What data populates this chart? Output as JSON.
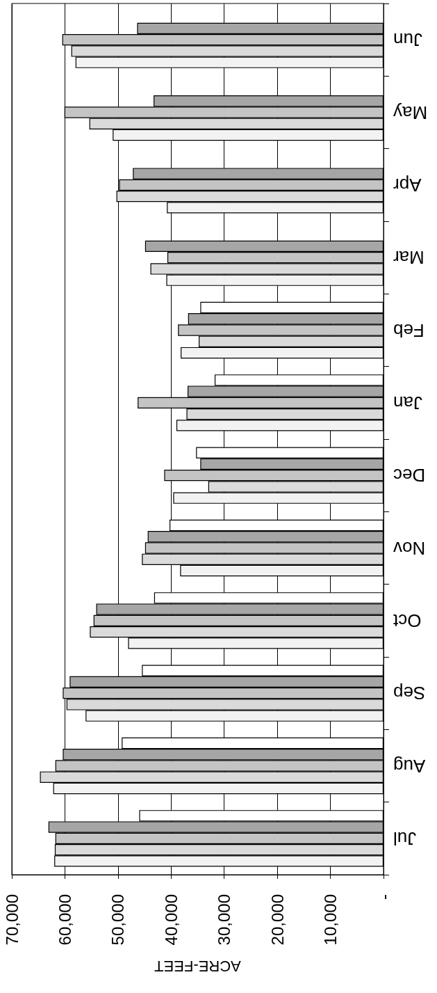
{
  "chart_data": {
    "type": "bar",
    "orientation": "horizontal",
    "xlabel": "ACRE-FEET",
    "categories": [
      "Jun",
      "May",
      "Apr",
      "Mar",
      "Feb",
      "Jan",
      "Dec",
      "Nov",
      "Oct",
      "Sep",
      "Aug",
      "Jul"
    ],
    "series": [
      {
        "color": "#ffffff",
        "values": [
          null,
          null,
          null,
          null,
          34500,
          31800,
          35300,
          40300,
          43200,
          45500,
          49300,
          46000
        ]
      },
      {
        "color": "#a6a6a6",
        "values": [
          46400,
          43300,
          47200,
          44900,
          36800,
          36900,
          34500,
          44400,
          54100,
          59100,
          60400,
          63100
        ]
      },
      {
        "color": "#c4c4c4",
        "values": [
          60500,
          60100,
          49800,
          40700,
          38700,
          46300,
          41300,
          44900,
          54600,
          60400,
          61800,
          61800
        ]
      },
      {
        "color": "#dadada",
        "values": [
          58800,
          55400,
          50300,
          43900,
          34800,
          37100,
          33000,
          45500,
          55300,
          59700,
          64700,
          61900
        ]
      },
      {
        "color": "#f2f2f2",
        "values": [
          58000,
          51000,
          40800,
          40900,
          38200,
          39000,
          39600,
          38300,
          48100,
          56100,
          62200,
          62000
        ]
      }
    ],
    "xlim": [
      70000,
      0
    ],
    "xticks": [
      {
        "value": 70000,
        "label": "70,000"
      },
      {
        "value": 60000,
        "label": "60,000"
      },
      {
        "value": 50000,
        "label": "50,000"
      },
      {
        "value": 40000,
        "label": "40,000"
      },
      {
        "value": 30000,
        "label": "30,000"
      },
      {
        "value": 20000,
        "label": "20,000"
      },
      {
        "value": 10000,
        "label": "10,000"
      },
      {
        "value": 0,
        "label": "-"
      }
    ],
    "grid": "x"
  }
}
